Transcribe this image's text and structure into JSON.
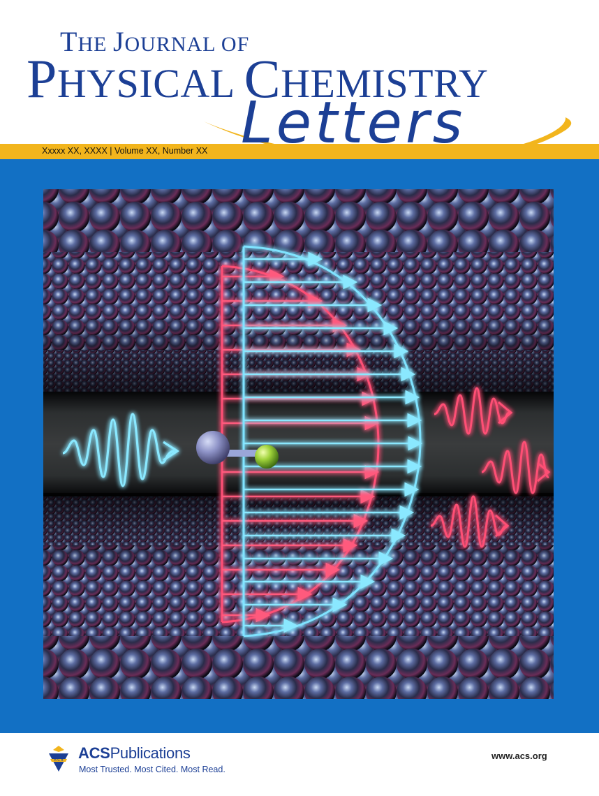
{
  "journal": {
    "title_line1": "The Journal of",
    "title_line2": "Physical Chemistry",
    "title_line3": "Letters"
  },
  "issue": {
    "text": "Xxxxx XX, XXXX | Volume XX, Number XX"
  },
  "publisher": {
    "name_bold": "ACS",
    "name_rest": "Publications",
    "tagline": "Most Trusted. Most Cited. Most Read.",
    "website": "www.acs.org"
  },
  "colors": {
    "brand_blue": "#1c3f95",
    "field_blue": "#1270c4",
    "gold": "#f2b51d",
    "glow_cyan": "#7fe3ff",
    "glow_red": "#ff4a6e"
  }
}
